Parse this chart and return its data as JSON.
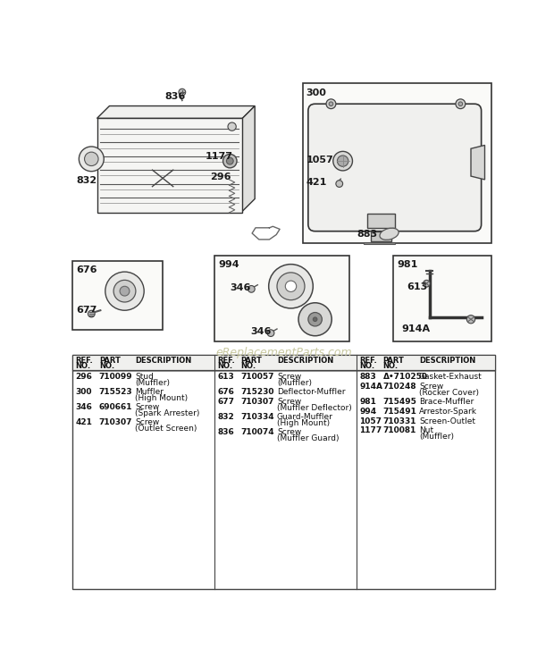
{
  "bg_color": "#ffffff",
  "watermark": "eReplacementParts.com",
  "col1": [
    [
      "296",
      "710099",
      "Stud",
      "(Muffler)"
    ],
    [
      "300",
      "715523",
      "Muffler",
      "(High Mount)"
    ],
    [
      "346",
      "690661",
      "Screw",
      "(Spark Arrester)"
    ],
    [
      "421",
      "710307",
      "Screw",
      "(Outlet Screen)"
    ]
  ],
  "col2": [
    [
      "613",
      "710057",
      "Screw",
      "(Muffler)"
    ],
    [
      "676",
      "715230",
      "Deflector-Muffler",
      ""
    ],
    [
      "677",
      "710307",
      "Screw",
      "(Muffler Deflector)"
    ],
    [
      "832",
      "710334",
      "Guard-Muffler",
      "(High Mount)"
    ],
    [
      "836",
      "710074",
      "Screw",
      "(Muffler Guard)"
    ]
  ],
  "col3": [
    [
      "883",
      "Δ•710250",
      "Gasket-Exhaust",
      ""
    ],
    [
      "914A",
      "710248",
      "Screw",
      "(Rocker Cover)"
    ],
    [
      "981",
      "715495",
      "Brace-Muffler",
      ""
    ],
    [
      "994",
      "715491",
      "Arrestor-Spark",
      ""
    ],
    [
      "1057",
      "710331",
      "Screen-Outlet",
      ""
    ],
    [
      "1177",
      "710081",
      "Nut",
      "(Muffler)"
    ]
  ]
}
